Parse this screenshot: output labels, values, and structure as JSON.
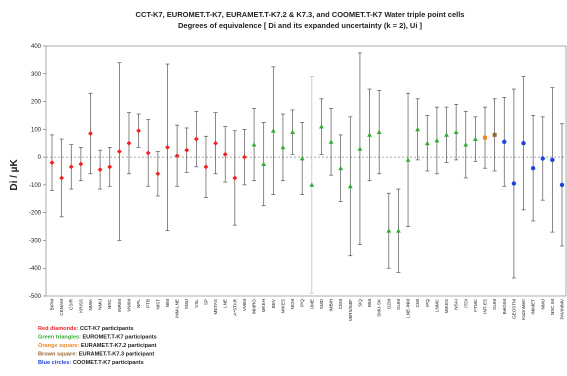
{
  "chart_data": {
    "type": "scatter",
    "title": "CCT-K7, EUROMET.T-K7, EURAMET.T-K7.2 & K7.3, and COOMET.T-K7      Water triple point cells",
    "subtitle": "Degrees of equivalence [ Di and its expanded uncertainty (k = 2), Ui ]",
    "ylabel": "Di / µK",
    "xlabel": "",
    "ylim": [
      -500,
      400
    ],
    "yticks": [
      -500,
      -400,
      -300,
      -200,
      -100,
      0,
      100,
      200,
      300,
      400
    ],
    "grid": false,
    "legend_position": "bottom-left",
    "colors": {
      "red": "#ee2222",
      "green": "#33aa33",
      "orange": "#ee8822",
      "brown": "#996633",
      "blue": "#2244dd",
      "errorbar": "#555555",
      "frame": "#9a9a9a",
      "zero_line": "#888888"
    },
    "legend": [
      {
        "color_key": "red",
        "series": "Red diamonds:",
        "description": "CCT-K7 participants"
      },
      {
        "color_key": "green",
        "series": "Green triangles:",
        "description": "EUROMET.T-K7 participants"
      },
      {
        "color_key": "orange",
        "series": "Orange square:",
        "description": "EURAMET.T-K7.2 participant"
      },
      {
        "color_key": "brown",
        "series": "Brown square:",
        "description": "EURAMET.T-K7.3 participant"
      },
      {
        "color_key": "blue",
        "series": "Blue circles:",
        "description": "COOMET.T-K7 participants"
      }
    ],
    "points": [
      {
        "label": "BIPM",
        "value": -20,
        "unc": 100,
        "group": "red"
      },
      {
        "label": "CENAM",
        "value": -75,
        "unc": 140,
        "group": "red"
      },
      {
        "label": "CSIR",
        "value": -35,
        "unc": 80,
        "group": "red"
      },
      {
        "label": "KRISS",
        "value": -25,
        "unc": 60,
        "group": "red"
      },
      {
        "label": "NMIA",
        "value": 85,
        "unc": 145,
        "group": "red"
      },
      {
        "label": "NMIJ",
        "value": -45,
        "unc": 70,
        "group": "red"
      },
      {
        "label": "NRC",
        "value": -35,
        "unc": 70,
        "group": "red"
      },
      {
        "label": "INRIM",
        "value": 20,
        "unc": 320,
        "group": "red"
      },
      {
        "label": "VNIIM",
        "value": 50,
        "unc": 110,
        "group": "red"
      },
      {
        "label": "NPL",
        "value": 95,
        "unc": 60,
        "group": "red"
      },
      {
        "label": "PTB",
        "value": 15,
        "unc": 120,
        "group": "red"
      },
      {
        "label": "NIST",
        "value": -60,
        "unc": 80,
        "group": "red"
      },
      {
        "label": "NIM",
        "value": 35,
        "unc": 300,
        "group": "red"
      },
      {
        "label": "INM-LNE",
        "value": 5,
        "unc": 110,
        "group": "red"
      },
      {
        "label": "SMU",
        "value": 25,
        "unc": 80,
        "group": "red"
      },
      {
        "label": "VSL",
        "value": 65,
        "unc": 100,
        "group": "red"
      },
      {
        "label": "SP",
        "value": -35,
        "unc": 110,
        "group": "red"
      },
      {
        "label": "METAS",
        "value": 50,
        "unc": 110,
        "group": "red"
      },
      {
        "label": "LNE",
        "value": 10,
        "unc": 100,
        "group": "red"
      },
      {
        "label": "A*STAR",
        "value": -75,
        "unc": 170,
        "group": "red"
      },
      {
        "label": "VMIM",
        "value": 0,
        "unc": 100,
        "group": "red"
      },
      {
        "label": "INMRO",
        "value": 45,
        "unc": 130,
        "group": "green"
      },
      {
        "label": "MKEH",
        "value": -25,
        "unc": 150,
        "group": "green"
      },
      {
        "label": "BEV",
        "value": 95,
        "unc": 230,
        "group": "green"
      },
      {
        "label": "MIKES",
        "value": 35,
        "unc": 120,
        "group": "green"
      },
      {
        "label": "NCM",
        "value": 90,
        "unc": 80,
        "group": "green"
      },
      {
        "label": "IPQ",
        "value": -5,
        "unc": 130,
        "group": "green"
      },
      {
        "label": "UME",
        "value": -100,
        "unc": 390,
        "group": "grey"
      },
      {
        "label": "SMD",
        "value": 110,
        "unc": 100,
        "group": "green"
      },
      {
        "label": "IMBiH",
        "value": 55,
        "unc": 120,
        "group": "green"
      },
      {
        "label": "CEM",
        "value": -40,
        "unc": 120,
        "group": "green"
      },
      {
        "label": "MIRS/IMIF",
        "value": -105,
        "unc": 250,
        "group": "green"
      },
      {
        "label": "SIQ",
        "value": 30,
        "unc": 345,
        "group": "green"
      },
      {
        "label": "BIM",
        "value": 80,
        "unc": 165,
        "group": "green"
      },
      {
        "label": "SMU-SK",
        "value": 90,
        "unc": 150,
        "group": "green"
      },
      {
        "label": "DZM",
        "value": -265,
        "unc": 135,
        "group": "green"
      },
      {
        "label": "GUM",
        "value": -265,
        "unc": 150,
        "group": "green"
      },
      {
        "label": "LNE-INM",
        "value": -10,
        "unc": 240,
        "group": "green"
      },
      {
        "label": "CMI",
        "value": 100,
        "unc": 110,
        "group": "green"
      },
      {
        "label": "IPQ-2",
        "value": 50,
        "unc": 100,
        "group": "green"
      },
      {
        "label": "LNMC",
        "value": 60,
        "unc": 120,
        "group": "green"
      },
      {
        "label": "MIKES-2",
        "value": 80,
        "unc": 100,
        "group": "green"
      },
      {
        "label": "NSAI",
        "value": 90,
        "unc": 100,
        "group": "green"
      },
      {
        "label": "ITDI",
        "value": 45,
        "unc": 120,
        "group": "green"
      },
      {
        "label": "FTMC",
        "value": 65,
        "unc": 80,
        "group": "green"
      },
      {
        "label": "INT-ES",
        "value": 70,
        "unc": 110,
        "group": "orange"
      },
      {
        "label": "GUM-2",
        "value": 80,
        "unc": 130,
        "group": "brown"
      },
      {
        "label": "BelGIM",
        "value": 55,
        "unc": 160,
        "group": "blue"
      },
      {
        "label": "GEOSTM",
        "value": -95,
        "unc": 340,
        "group": "blue"
      },
      {
        "label": "KazInMetr",
        "value": 50,
        "unc": 240,
        "group": "blue"
      },
      {
        "label": "INIMET",
        "value": -40,
        "unc": 190,
        "group": "blue"
      },
      {
        "label": "NMU",
        "value": -5,
        "unc": 150,
        "group": "blue"
      },
      {
        "label": "NSC IM",
        "value": -10,
        "unc": 260,
        "group": "blue"
      },
      {
        "label": "PAVIMMV",
        "value": -100,
        "unc": 220,
        "group": "blue"
      }
    ],
    "x_labels": [
      "BIPM",
      "CENAM",
      "CSIR",
      "KRISS",
      "NMIA",
      "NMIJ",
      "NRC",
      "INRIM",
      "VNIIM",
      "NPL",
      "PTB",
      "NIST",
      "NIM",
      "INM-LNE",
      "SMU",
      "VSL",
      "SP",
      "METAS",
      "LNE",
      "A*STAR",
      "VMIM",
      "INMRO",
      "MKEH",
      "BEV",
      "MIKES",
      "NCM",
      "IPQ",
      "UME",
      "SMD",
      "IMBiH",
      "CEM",
      "MIRS/IMIF",
      "SIQ",
      "BIM",
      "SMU-SK",
      "DZM",
      "GUM",
      "LNE-INM",
      "CMI",
      "IPQ",
      "LNMC",
      "MIKES",
      "NSAI",
      "ITDI",
      "FTMC",
      "INT-ES",
      "GUM",
      "BelGIM",
      "GEOSTM",
      "KazInMetr",
      "INIMET",
      "NMU",
      "NSC IM",
      "PAVIMMV"
    ]
  }
}
